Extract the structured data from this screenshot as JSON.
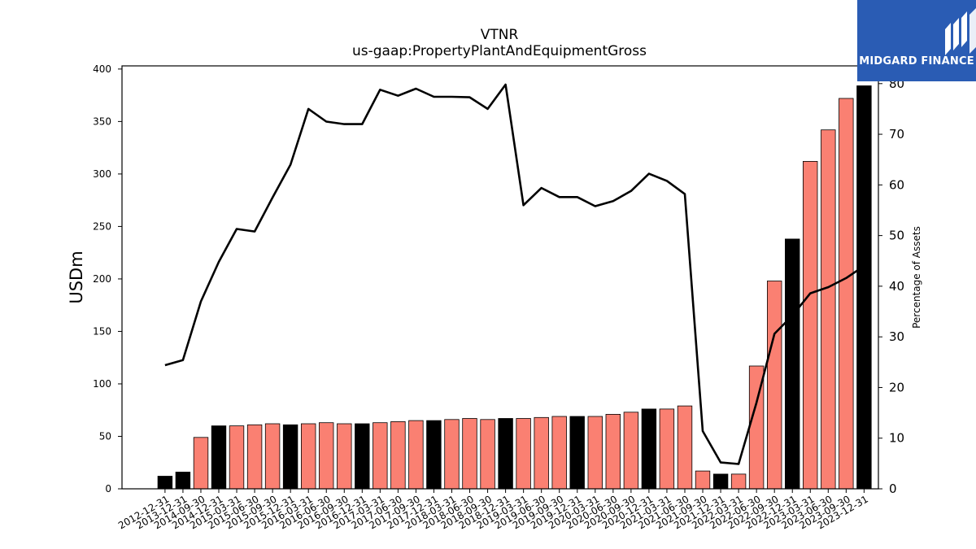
{
  "brand": {
    "name": "MIDGARD FINANCE",
    "background": "#2a5cb4"
  },
  "chart_data": {
    "type": "bar",
    "title": "VTNR",
    "subtitle": "us-gaap:PropertyPlantAndEquipmentGross",
    "ylabel": "USDm",
    "y2label": "Percentage of Assets",
    "ylim": [
      0,
      403
    ],
    "y2lim": [
      0,
      83.5
    ],
    "yticks": [
      0,
      50,
      100,
      150,
      200,
      250,
      300,
      350,
      400
    ],
    "y2ticks": [
      0,
      10,
      20,
      30,
      40,
      50,
      60,
      70,
      80
    ],
    "colors": {
      "annual": "#000000",
      "quarterly": "#fa8072",
      "line": "#000000"
    },
    "categories": [
      "2012-12-31",
      "2013-12-31",
      "2014-09-30",
      "2014-12-31",
      "2015-03-31",
      "2015-06-30",
      "2015-09-30",
      "2015-12-31",
      "2016-03-31",
      "2016-06-30",
      "2016-09-30",
      "2016-12-31",
      "2017-03-31",
      "2017-06-30",
      "2017-09-30",
      "2017-12-31",
      "2018-03-31",
      "2018-06-30",
      "2018-09-30",
      "2018-12-31",
      "2019-03-31",
      "2019-06-30",
      "2019-09-30",
      "2019-12-31",
      "2020-03-31",
      "2020-06-30",
      "2020-09-30",
      "2020-12-31",
      "2021-03-31",
      "2021-06-30",
      "2021-09-30",
      "2021-12-31",
      "2022-03-31",
      "2022-06-30",
      "2022-09-30",
      "2022-12-31",
      "2023-03-31",
      "2023-06-30",
      "2023-09-30",
      "2023-12-31"
    ],
    "series": [
      {
        "type": "bar",
        "values": [
          12,
          16,
          49,
          60,
          60,
          61,
          62,
          61,
          62,
          63,
          62,
          62,
          63,
          64,
          65,
          65,
          66,
          67,
          66,
          67,
          67,
          68,
          69,
          69,
          69,
          71,
          73,
          76,
          76,
          79,
          17,
          14,
          14,
          117,
          198,
          238,
          312,
          342,
          372,
          384
        ],
        "annual": [
          true,
          true,
          false,
          true,
          false,
          false,
          false,
          true,
          false,
          false,
          false,
          true,
          false,
          false,
          false,
          true,
          false,
          false,
          false,
          true,
          false,
          false,
          false,
          true,
          false,
          false,
          false,
          true,
          false,
          false,
          false,
          true,
          false,
          false,
          false,
          true,
          false,
          false,
          false,
          true
        ]
      },
      {
        "type": "line",
        "axis": "right",
        "values": [
          24.4,
          25.4,
          37.0,
          44.8,
          51.3,
          50.8,
          57.5,
          64.0,
          75.0,
          72.5,
          72.0,
          72.0,
          78.8,
          77.6,
          79.0,
          77.4,
          77.4,
          77.3,
          75.0,
          79.8,
          56.0,
          59.4,
          57.6,
          57.6,
          55.8,
          56.8,
          58.8,
          62.2,
          60.8,
          58.2,
          11.4,
          5.2,
          4.9,
          17.0,
          30.6,
          34.2,
          38.6,
          39.8,
          41.6,
          44.0
        ]
      }
    ]
  }
}
